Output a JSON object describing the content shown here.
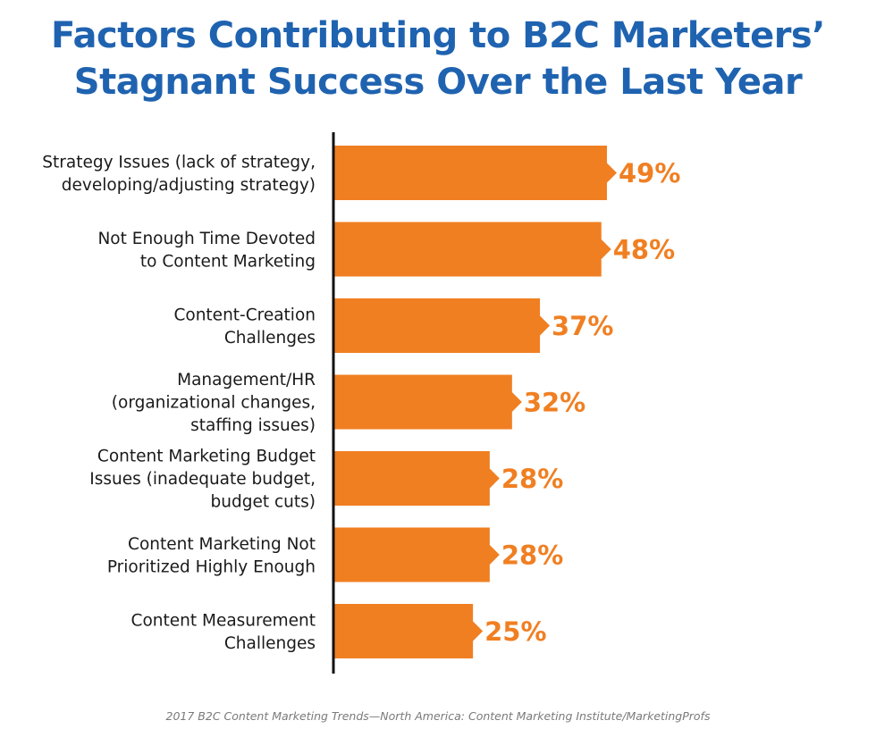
{
  "chart_data": {
    "type": "bar",
    "orientation": "horizontal",
    "title": "Factors Contributing to B2C Marketers’ Stagnant Success Over the Last Year",
    "title_lines": [
      "Factors Contributing to B2C Marketers’",
      "Stagnant Success Over the Last Year"
    ],
    "categories": [
      "Strategy Issues (lack of strategy, developing/adjusting strategy)",
      "Not Enough Time Devoted to Content Marketing",
      "Content-Creation Challenges",
      "Management/HR (organizational changes, staffing issues)",
      "Content Marketing Budget Issues (inadequate budget, budget cuts)",
      "Content Marketing Not Prioritized Highly Enough",
      "Content Measurement Challenges"
    ],
    "category_lines": [
      [
        "Strategy Issues (lack of strategy,",
        "developing/adjusting strategy)"
      ],
      [
        "Not Enough Time Devoted",
        "to Content Marketing"
      ],
      [
        "Content-Creation",
        "Challenges"
      ],
      [
        "Management/HR",
        "(organizational changes,",
        "staffing issues)"
      ],
      [
        "Content Marketing Budget",
        "Issues (inadequate budget,",
        "budget cuts)"
      ],
      [
        "Content Marketing Not",
        "Prioritized Highly Enough"
      ],
      [
        "Content Measurement",
        "Challenges"
      ]
    ],
    "values": [
      49,
      48,
      37,
      32,
      28,
      28,
      25
    ],
    "value_labels": [
      "49%",
      "48%",
      "37%",
      "32%",
      "28%",
      "28%",
      "25%"
    ],
    "unit": "%",
    "xlim": [
      0,
      100
    ],
    "grid": false,
    "legend": "none",
    "source": "2017 B2C Content Marketing Trends—North America: Content Marketing Institute/MarketingProfs"
  },
  "colors": {
    "title": "#1f63b0",
    "bar": "#f07f22",
    "value_label": "#f07f22",
    "axis": "#111111",
    "category_text": "#1a1a1a",
    "source_text": "#7a7a7a"
  }
}
